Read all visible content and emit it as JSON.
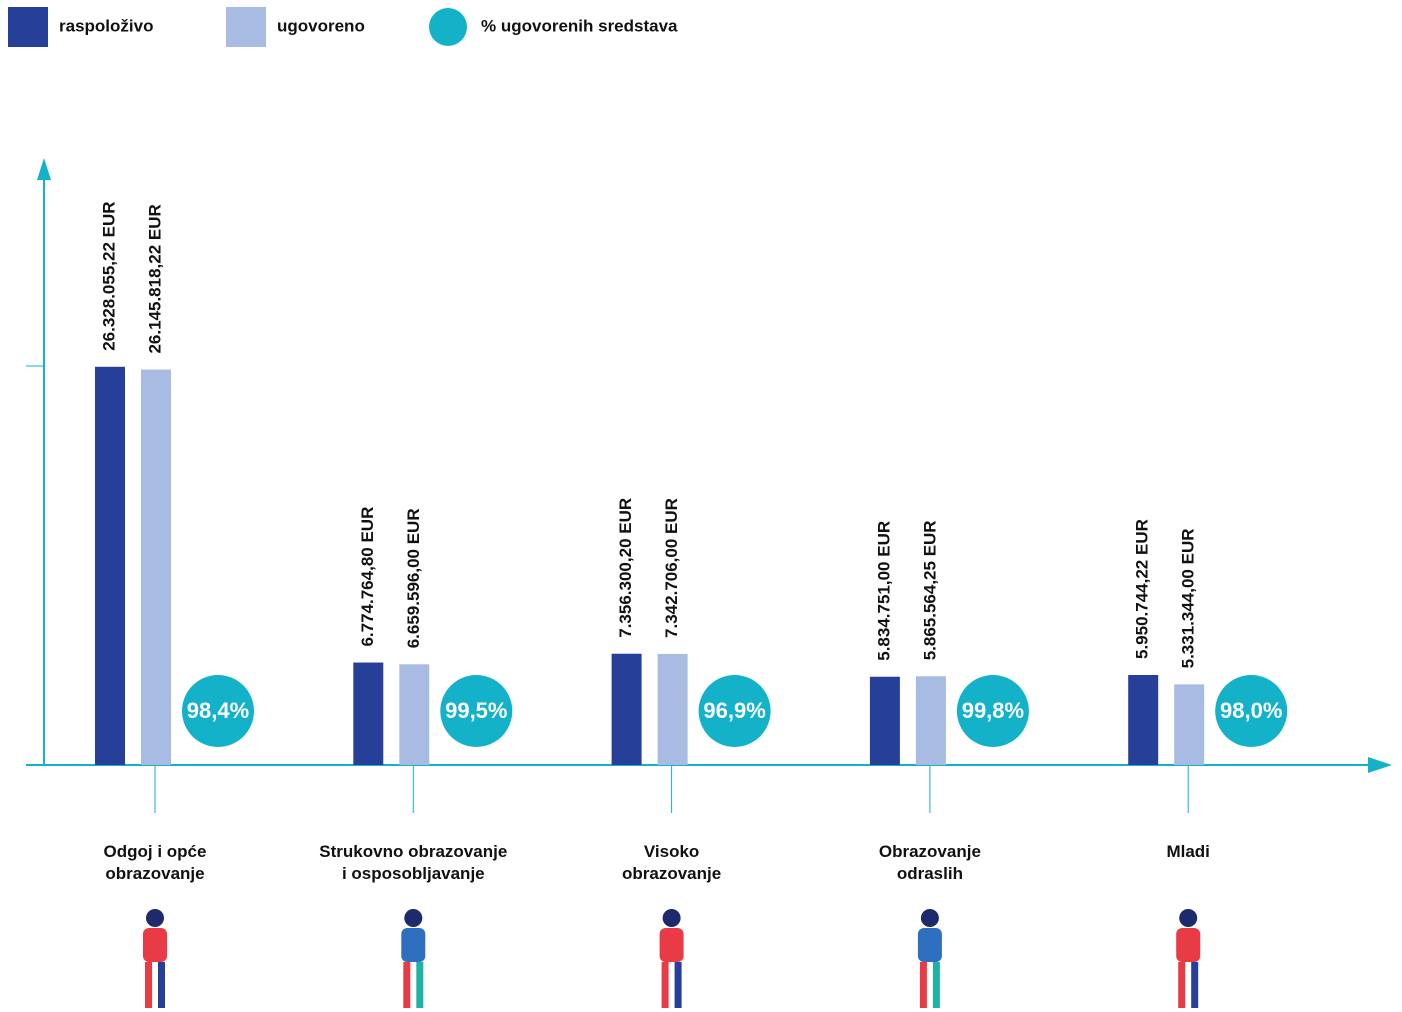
{
  "chart_data": {
    "type": "bar",
    "categories": [
      "Odgoj i opće\nobrazovanje",
      "Strukovno obrazovanje\ni osposobljavanje",
      "Visoko\nobrazovanje",
      "Obrazovanje\nodraslih",
      "Mladi"
    ],
    "series": [
      {
        "name": "raspoloživo",
        "color": "#26409a",
        "values": [
          26328055.22,
          6774764.8,
          7356300.2,
          5834751.0,
          5950744.22
        ],
        "value_labels": [
          "26.328.055,22 EUR",
          "6.774.764,80 EUR",
          "7.356.300,20 EUR",
          "5.834.751,00 EUR",
          "5.950.744,22 EUR"
        ]
      },
      {
        "name": "ugovoreno",
        "color": "#a8bbe2",
        "values": [
          26145818.22,
          6659596.0,
          7342706.0,
          5865564.25,
          5331344.0
        ],
        "value_labels": [
          "26.145.818,22 EUR",
          "6.659.596,00 EUR",
          "7.342.706,00 EUR",
          "5.865.564,25 EUR",
          "5.331.344,00 EUR"
        ]
      },
      {
        "name": "% ugovorenih sredstava",
        "color": "#13b2c8",
        "values": [
          98.4,
          99.5,
          96.9,
          99.8,
          98.0
        ],
        "value_labels": [
          "98,4%",
          "99,5%",
          "96,9%",
          "99,8%",
          "98,0%"
        ]
      }
    ],
    "ylim": [
      0,
      40000000
    ]
  }
}
